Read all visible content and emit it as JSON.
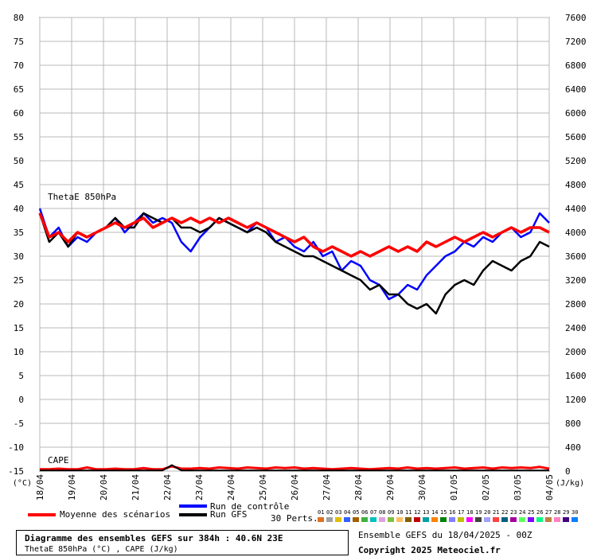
{
  "chart_data": {
    "type": "line",
    "title": "Diagramme des ensembles GEFS sur 384h : 40.6N 23E",
    "subtitle": "ThetaE 850hPa (°C) , CAPE (J/kg)",
    "left_axis": {
      "unit": "(°C)",
      "ylim": [
        -15,
        80
      ],
      "ticks": [
        80,
        75,
        70,
        65,
        60,
        55,
        50,
        45,
        40,
        35,
        30,
        25,
        20,
        15,
        10,
        5,
        0,
        -5,
        -10,
        -15
      ]
    },
    "right_axis": {
      "unit": "(J/kg)",
      "ylim": [
        0,
        7600
      ],
      "ticks": [
        7600,
        7200,
        6800,
        6400,
        6000,
        5600,
        5200,
        4800,
        4400,
        4000,
        3600,
        3200,
        2800,
        2400,
        2000,
        1600,
        1200,
        800,
        400,
        0
      ]
    },
    "x_labels": [
      "18/04",
      "19/04",
      "20/04",
      "21/04",
      "22/04",
      "23/04",
      "24/04",
      "25/04",
      "26/04",
      "27/04",
      "28/04",
      "29/04",
      "30/04",
      "01/05",
      "02/05",
      "03/05",
      "04/05"
    ],
    "annotations": [
      "ThetaE 850hPa",
      "CAPE"
    ],
    "series": [
      {
        "name": "Moyenne des scénarios",
        "color": "#ff0000",
        "values": [
          39,
          34,
          35,
          33,
          35,
          34,
          35,
          36,
          37,
          36,
          37,
          38,
          36,
          37,
          38,
          37,
          38,
          37,
          38,
          37,
          38,
          37,
          36,
          37,
          36,
          35,
          34,
          33,
          34,
          32,
          31,
          32,
          31,
          30,
          31,
          30,
          31,
          32,
          31,
          32,
          31,
          33,
          32,
          33,
          34,
          33,
          34,
          35,
          34,
          35,
          36,
          35,
          36,
          36,
          35
        ]
      },
      {
        "name": "Run de contrôle",
        "color": "#0000ff",
        "values": [
          40,
          34,
          36,
          32,
          34,
          33,
          35,
          36,
          38,
          35,
          37,
          39,
          37,
          38,
          37,
          33,
          31,
          34,
          36,
          38,
          37,
          36,
          35,
          37,
          36,
          33,
          34,
          32,
          31,
          33,
          30,
          31,
          27,
          29,
          28,
          25,
          24,
          21,
          22,
          24,
          23,
          26,
          28,
          30,
          31,
          33,
          32,
          34,
          33,
          35,
          36,
          34,
          35,
          39,
          37
        ]
      },
      {
        "name": "Run GFS",
        "color": "#000000",
        "values": [
          39,
          33,
          35,
          32,
          35,
          34,
          35,
          36,
          38,
          36,
          36,
          39,
          38,
          37,
          38,
          36,
          36,
          35,
          36,
          38,
          37,
          36,
          35,
          36,
          35,
          33,
          32,
          31,
          30,
          30,
          29,
          28,
          27,
          26,
          25,
          23,
          24,
          22,
          22,
          20,
          19,
          20,
          18,
          22,
          24,
          25,
          24,
          27,
          29,
          28,
          27,
          29,
          30,
          33,
          32
        ]
      }
    ],
    "cape_series": [
      {
        "name": "Moyenne des scénarios",
        "color": "#ff0000",
        "values": [
          30,
          30,
          40,
          30,
          30,
          60,
          30,
          30,
          40,
          30,
          30,
          50,
          30,
          30,
          80,
          40,
          40,
          50,
          40,
          60,
          50,
          40,
          60,
          50,
          40,
          60,
          50,
          60,
          40,
          50,
          40,
          30,
          40,
          50,
          40,
          30,
          40,
          50,
          40,
          60,
          40,
          50,
          40,
          50,
          60,
          40,
          50,
          60,
          40,
          60,
          50,
          60,
          50,
          70,
          40
        ]
      },
      {
        "name": "Run GFS",
        "color": "#000000",
        "values": [
          10,
          10,
          10,
          10,
          10,
          10,
          10,
          10,
          10,
          10,
          10,
          10,
          10,
          10,
          100,
          10,
          10,
          10,
          10,
          10,
          10,
          10,
          10,
          10,
          10,
          10,
          10,
          10,
          10,
          10,
          10,
          10,
          10,
          10,
          10,
          10,
          10,
          10,
          10,
          10,
          10,
          10,
          10,
          10,
          10,
          10,
          10,
          10,
          10,
          10,
          10,
          10,
          10,
          10,
          10
        ]
      }
    ]
  },
  "legend": {
    "mean": "Moyenne des scénarios",
    "control": "Run de contrôle",
    "gfs": "Run GFS",
    "perts_label": "30 Perts.",
    "pert_numbers": [
      "01",
      "02",
      "03",
      "04",
      "05",
      "06",
      "07",
      "08",
      "09",
      "10",
      "11",
      "12",
      "13",
      "14",
      "15",
      "16",
      "17",
      "18",
      "19",
      "20",
      "21",
      "22",
      "23",
      "24",
      "25",
      "26",
      "27",
      "28",
      "29",
      "30"
    ],
    "pert_colors": [
      "#e07020",
      "#a0a0a0",
      "#e0c000",
      "#3060ff",
      "#a06000",
      "#40b040",
      "#00c0c0",
      "#e0a0e0",
      "#80c040",
      "#ffc060",
      "#806000",
      "#c00000",
      "#00a0a0",
      "#ff8000",
      "#008000",
      "#8080ff",
      "#c0c000",
      "#ff00ff",
      "#404040",
      "#a0a0ff",
      "#ff4040",
      "#006080",
      "#a000a0",
      "#60ff60",
      "#8000ff",
      "#00ff80",
      "#c08040",
      "#ff80c0",
      "#400080",
      "#0080ff"
    ]
  },
  "footer": {
    "title": "Diagramme des ensembles GEFS sur 384h : 40.6N 23E",
    "subtitle": "ThetaE 850hPa (°C) , CAPE (J/kg)",
    "run": "Ensemble GEFS du 18/04/2025 - 00Z",
    "copyright": "Copyright 2025 Meteociel.fr"
  }
}
